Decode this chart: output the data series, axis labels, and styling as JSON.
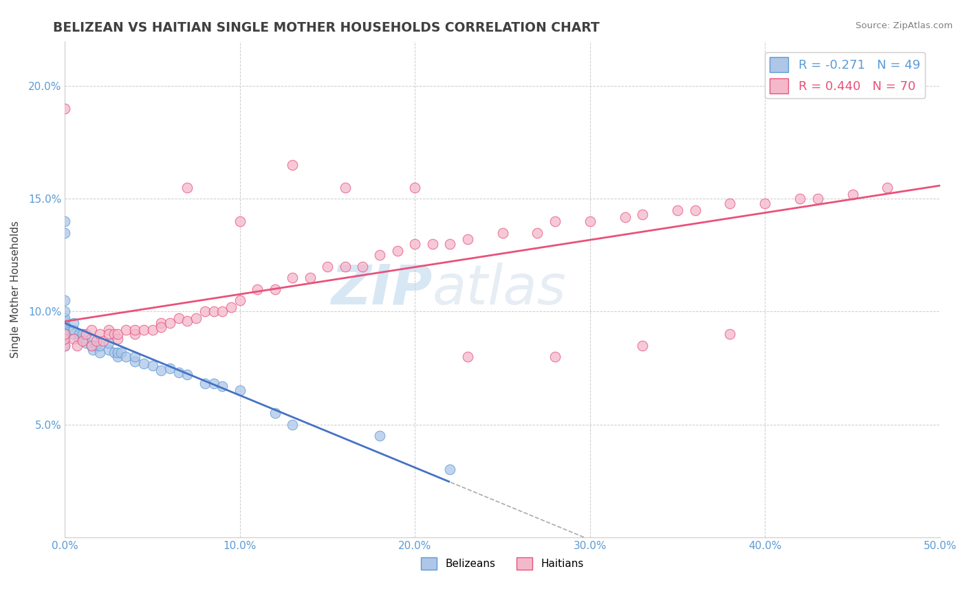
{
  "title": "BELIZEAN VS HAITIAN SINGLE MOTHER HOUSEHOLDS CORRELATION CHART",
  "source": "Source: ZipAtlas.com",
  "ylabel": "Single Mother Households",
  "xlim": [
    0.0,
    0.5
  ],
  "ylim": [
    0.0,
    0.22
  ],
  "ytick_labels": [
    "5.0%",
    "10.0%",
    "15.0%",
    "20.0%"
  ],
  "ytick_values": [
    0.05,
    0.1,
    0.15,
    0.2
  ],
  "xtick_values": [
    0.0,
    0.1,
    0.2,
    0.3,
    0.4,
    0.5
  ],
  "xtick_labels": [
    "0.0%",
    "10.0%",
    "20.0%",
    "30.0%",
    "40.0%",
    "50.0%"
  ],
  "belizean_R": -0.271,
  "belizean_N": 49,
  "haitian_R": 0.44,
  "haitian_N": 70,
  "belizean_color": "#aec6e8",
  "haitian_color": "#f4b8cc",
  "belizean_edge_color": "#5b9bd5",
  "haitian_edge_color": "#e8527a",
  "belizean_line_color": "#4472c4",
  "haitian_line_color": "#e8527a",
  "watermark_zip": "ZIP",
  "watermark_atlas": "atlas",
  "background_color": "#ffffff",
  "grid_color": "#cccccc",
  "title_color": "#404040",
  "source_color": "#808080",
  "tick_color": "#5b9bd5",
  "ylabel_color": "#404040",
  "legend_label_color_bel": "#5b9bd5",
  "legend_label_color_hai": "#e8527a",
  "belizean_x": [
    0.0,
    0.0,
    0.0,
    0.0,
    0.0,
    0.0,
    0.0,
    0.0,
    0.0,
    0.0,
    0.005,
    0.005,
    0.005,
    0.008,
    0.008,
    0.01,
    0.01,
    0.012,
    0.015,
    0.015,
    0.016,
    0.018,
    0.02,
    0.02,
    0.025,
    0.025,
    0.028,
    0.03,
    0.03,
    0.032,
    0.035,
    0.04,
    0.04,
    0.045,
    0.05,
    0.055,
    0.06,
    0.065,
    0.07,
    0.08,
    0.085,
    0.09,
    0.1,
    0.12,
    0.13,
    0.0,
    0.0,
    0.18,
    0.22
  ],
  "belizean_y": [
    0.085,
    0.088,
    0.09,
    0.092,
    0.094,
    0.095,
    0.096,
    0.097,
    0.1,
    0.105,
    0.09,
    0.092,
    0.095,
    0.088,
    0.09,
    0.088,
    0.09,
    0.086,
    0.085,
    0.088,
    0.083,
    0.085,
    0.082,
    0.085,
    0.083,
    0.086,
    0.082,
    0.08,
    0.082,
    0.082,
    0.08,
    0.078,
    0.08,
    0.077,
    0.076,
    0.074,
    0.075,
    0.073,
    0.072,
    0.068,
    0.068,
    0.067,
    0.065,
    0.055,
    0.05,
    0.135,
    0.14,
    0.045,
    0.03
  ],
  "haitian_x": [
    0.0,
    0.0,
    0.0,
    0.005,
    0.007,
    0.01,
    0.012,
    0.015,
    0.015,
    0.018,
    0.02,
    0.022,
    0.025,
    0.025,
    0.028,
    0.03,
    0.03,
    0.035,
    0.04,
    0.04,
    0.045,
    0.05,
    0.055,
    0.055,
    0.06,
    0.065,
    0.07,
    0.075,
    0.08,
    0.085,
    0.09,
    0.095,
    0.1,
    0.11,
    0.12,
    0.13,
    0.14,
    0.15,
    0.16,
    0.17,
    0.18,
    0.19,
    0.2,
    0.21,
    0.22,
    0.23,
    0.25,
    0.27,
    0.28,
    0.3,
    0.32,
    0.33,
    0.35,
    0.36,
    0.38,
    0.4,
    0.42,
    0.43,
    0.45,
    0.47,
    0.0,
    0.07,
    0.1,
    0.13,
    0.16,
    0.2,
    0.23,
    0.28,
    0.33,
    0.38
  ],
  "haitian_y": [
    0.085,
    0.088,
    0.09,
    0.088,
    0.085,
    0.087,
    0.09,
    0.085,
    0.092,
    0.087,
    0.09,
    0.087,
    0.092,
    0.09,
    0.09,
    0.088,
    0.09,
    0.092,
    0.09,
    0.092,
    0.092,
    0.092,
    0.095,
    0.093,
    0.095,
    0.097,
    0.096,
    0.097,
    0.1,
    0.1,
    0.1,
    0.102,
    0.105,
    0.11,
    0.11,
    0.115,
    0.115,
    0.12,
    0.12,
    0.12,
    0.125,
    0.127,
    0.13,
    0.13,
    0.13,
    0.132,
    0.135,
    0.135,
    0.14,
    0.14,
    0.142,
    0.143,
    0.145,
    0.145,
    0.148,
    0.148,
    0.15,
    0.15,
    0.152,
    0.155,
    0.19,
    0.155,
    0.14,
    0.165,
    0.155,
    0.155,
    0.08,
    0.08,
    0.085,
    0.09
  ]
}
